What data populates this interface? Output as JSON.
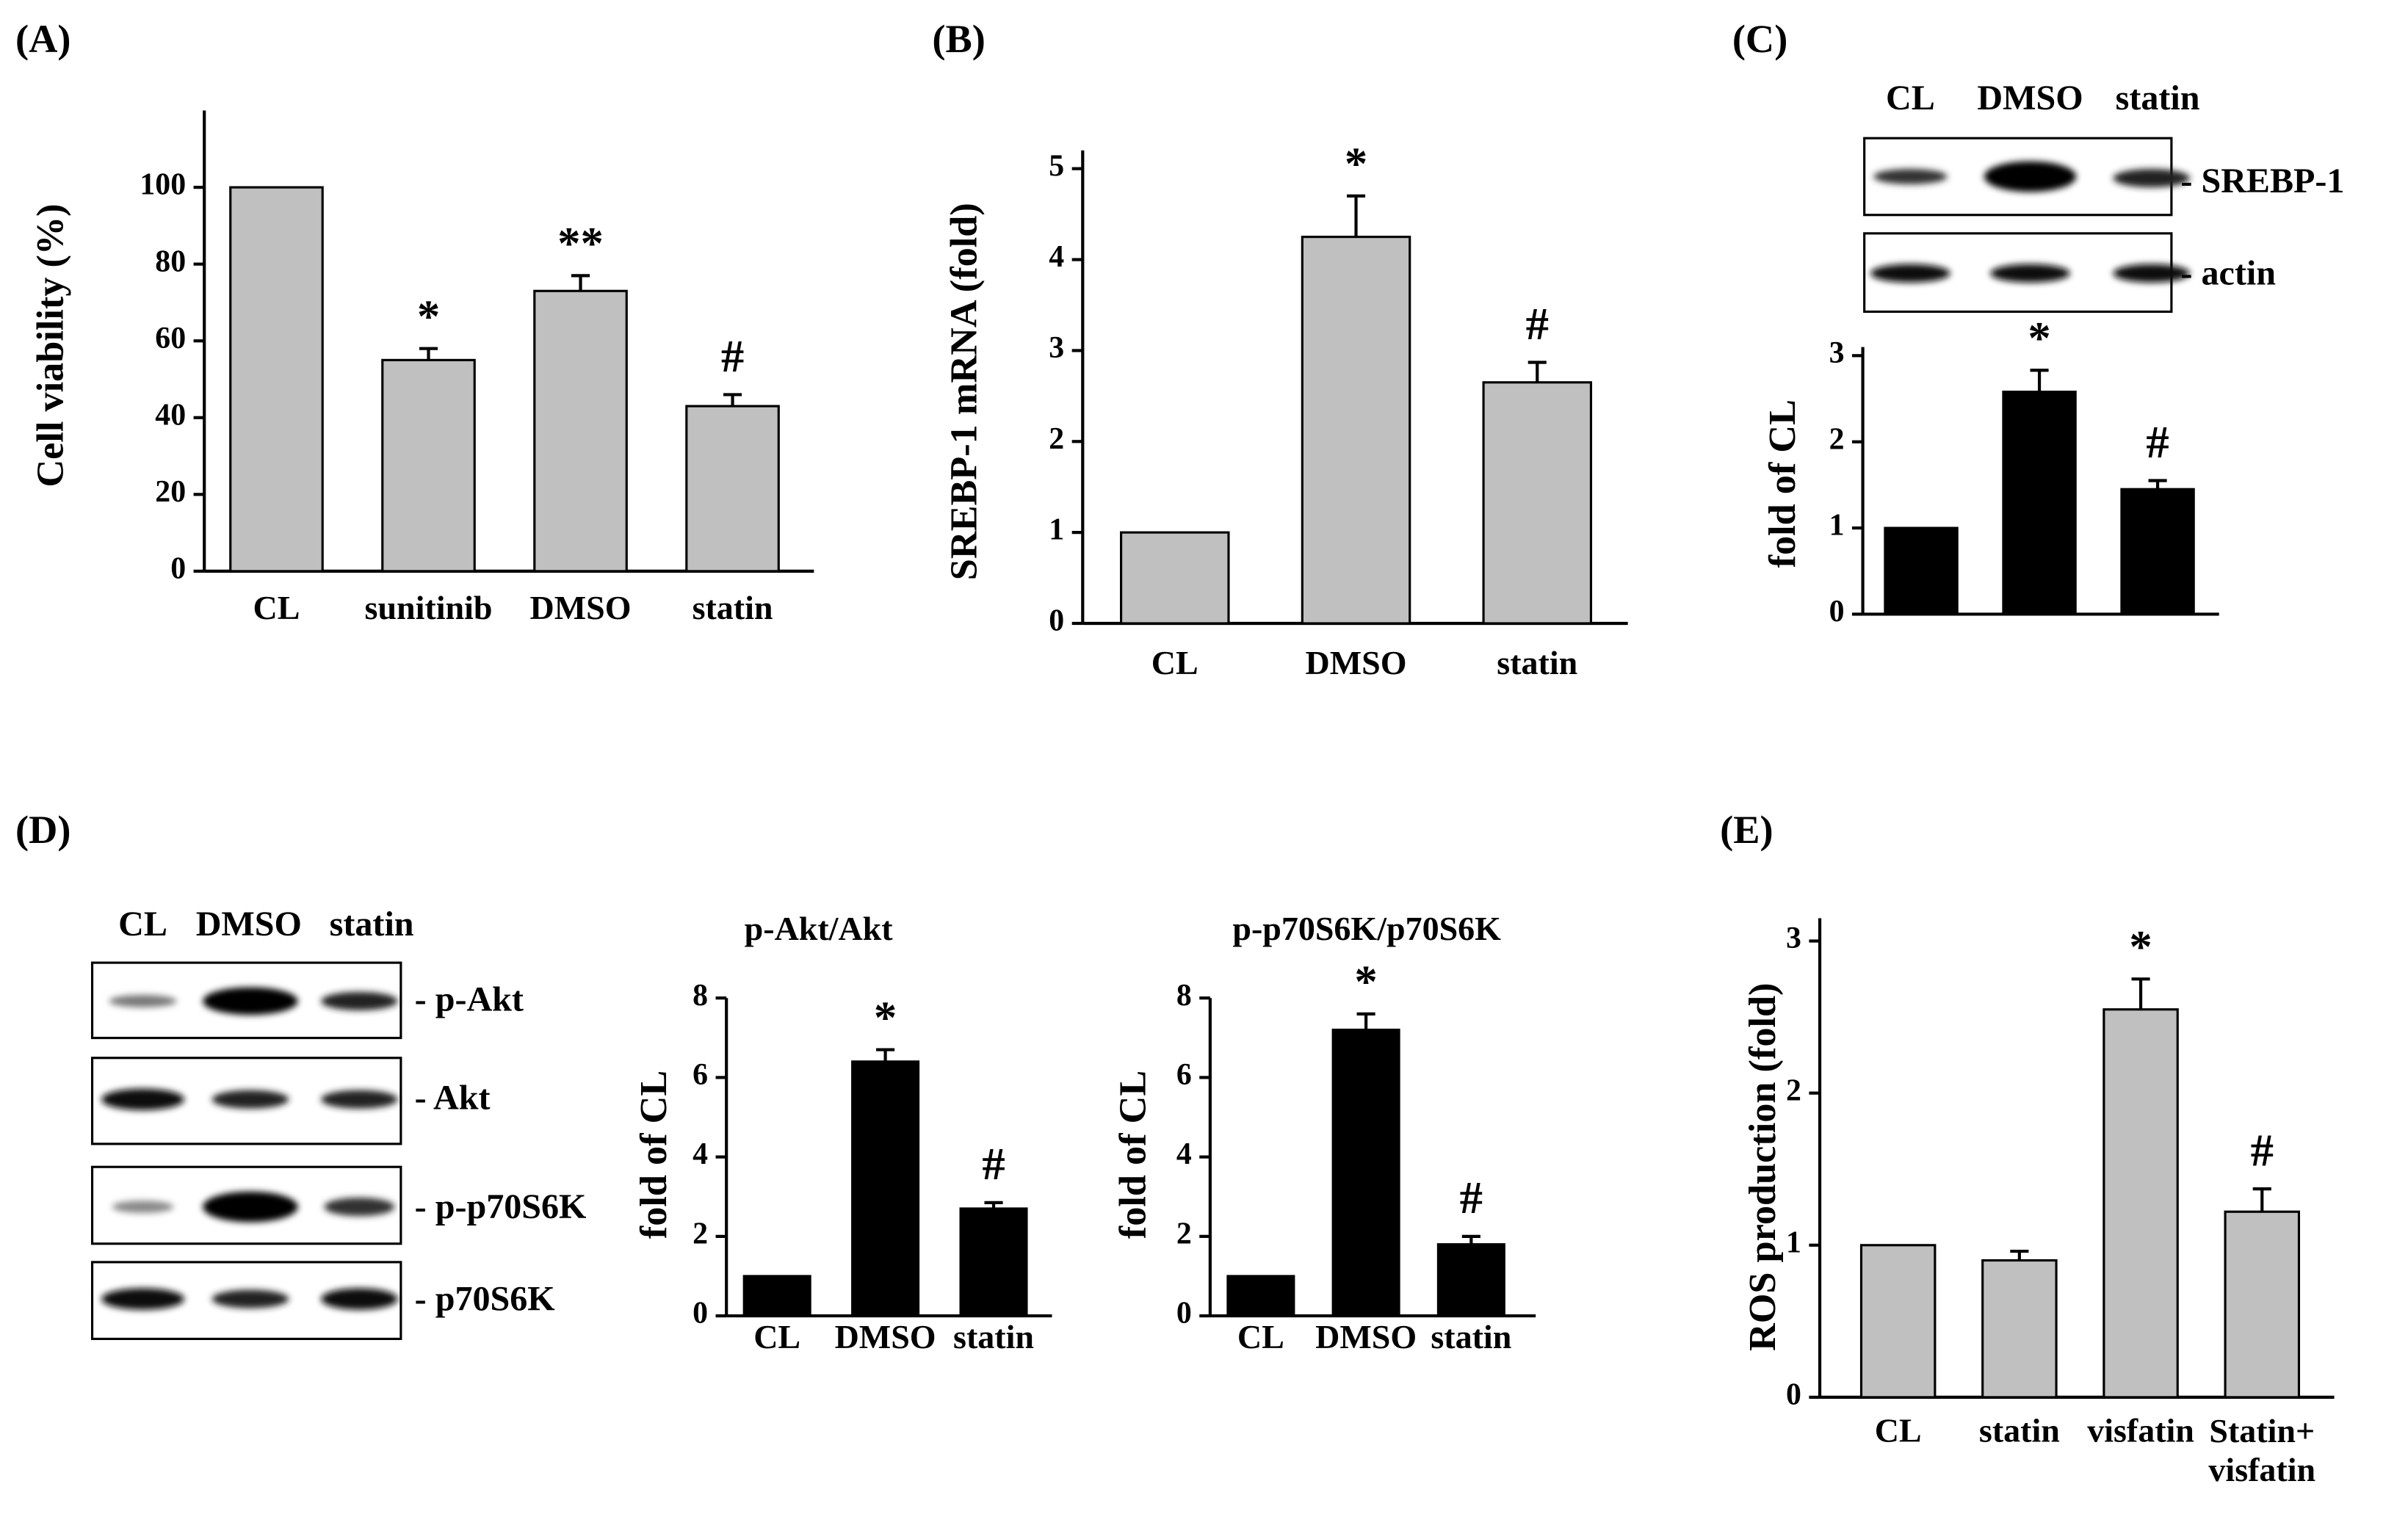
{
  "chart_data": [
    {
      "type": "bar",
      "panel": "(A)",
      "ylabel": "Cell viability (%)",
      "categories": [
        "CL",
        "sunitinib",
        "DMSO",
        "statin"
      ],
      "values": [
        100,
        55,
        73,
        43
      ],
      "errors": [
        null,
        3,
        4,
        3
      ],
      "annotations": [
        null,
        "*",
        "**",
        "#"
      ],
      "color": "#c0c0c0",
      "ylim": [
        0,
        120
      ],
      "yticks": [
        0,
        20,
        40,
        60,
        80,
        100
      ]
    },
    {
      "type": "bar",
      "panel": "(B)",
      "ylabel": "SREBP-1 mRNA (fold)",
      "categories": [
        "CL",
        "DMSO",
        "statin"
      ],
      "values": [
        1,
        4.25,
        2.65
      ],
      "errors": [
        null,
        0.45,
        0.22
      ],
      "annotations": [
        null,
        "*",
        "#"
      ],
      "color": "#c0c0c0",
      "ylim": [
        0,
        5.2
      ],
      "yticks": [
        0,
        1,
        2,
        3,
        4,
        5
      ]
    },
    {
      "type": "bar",
      "ylabel": "fold of CL",
      "categories": [
        null,
        null,
        null
      ],
      "values": [
        1,
        2.58,
        1.45
      ],
      "errors": [
        null,
        0.25,
        0.1
      ],
      "annotations": [
        null,
        "*",
        "#"
      ],
      "color": "#000000",
      "ylim": [
        0,
        3.1
      ],
      "yticks": [
        0,
        1,
        2,
        3
      ]
    },
    {
      "type": "bar",
      "title": "p-Akt/Akt",
      "ylabel": "fold of CL",
      "categories": [
        "CL",
        "DMSO",
        "statin"
      ],
      "values": [
        1,
        6.4,
        2.7
      ],
      "errors": [
        null,
        0.3,
        0.15
      ],
      "annotations": [
        null,
        "*",
        "#"
      ],
      "color": "#000000",
      "ylim": [
        0,
        8
      ],
      "yticks": [
        0,
        2,
        4,
        6,
        8
      ]
    },
    {
      "type": "bar",
      "title": "p-p70S6K/p70S6K",
      "ylabel": "fold of CL",
      "categories": [
        "CL",
        "DMSO",
        "statin"
      ],
      "values": [
        1,
        7.2,
        1.8
      ],
      "errors": [
        null,
        0.4,
        0.2
      ],
      "annotations": [
        null,
        "*",
        "#"
      ],
      "color": "#000000",
      "ylim": [
        0,
        8
      ],
      "yticks": [
        0,
        2,
        4,
        6,
        8
      ]
    },
    {
      "type": "bar",
      "panel": "(E)",
      "ylabel": "ROS production (fold)",
      "categories": [
        "CL",
        "statin",
        "visfatin",
        "Statin+\nvisfatin"
      ],
      "values": [
        1,
        0.9,
        2.55,
        1.22
      ],
      "errors": [
        null,
        0.06,
        0.2,
        0.15
      ],
      "annotations": [
        null,
        null,
        "*",
        "#"
      ],
      "color": "#c0c0c0",
      "ylim": [
        0,
        3.15
      ],
      "yticks": [
        0,
        1,
        2,
        3
      ]
    }
  ],
  "blots": [
    {
      "panel": "(C)",
      "lanes": [
        "CL",
        "DMSO",
        "statin"
      ],
      "bands": [
        "- SREBP-1",
        "- actin"
      ]
    },
    {
      "panel": "(D)",
      "lanes": [
        "CL",
        "DMSO",
        "statin"
      ],
      "bands": [
        "- p-Akt",
        "- Akt",
        "- p-p70S6K",
        "- p70S6K"
      ]
    }
  ]
}
